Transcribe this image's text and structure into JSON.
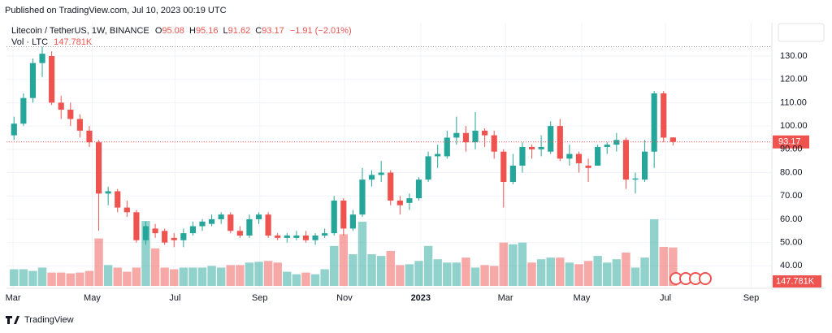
{
  "header": {
    "published": "Published on TradingView.com, Jul 10, 2023 00:19 UTC"
  },
  "footer": {
    "brand": "TradingView"
  },
  "chart_data": {
    "type": "candlestick",
    "symbol": "Litecoin / TetherUS, 1W, BINANCE",
    "ohlc_letters": [
      "O",
      "H",
      "L",
      "C"
    ],
    "change": "−1.91 (−2.01%)",
    "volume_title": "Vol · LTC",
    "up_color": "#26a69a",
    "down_color": "#ef5350",
    "open": [
      96,
      101,
      112,
      127,
      130,
      110,
      107,
      103,
      98,
      93,
      71,
      72,
      65,
      63,
      51,
      56,
      55,
      52,
      51,
      54,
      57,
      58,
      60,
      62,
      55,
      53,
      60,
      62,
      53,
      52,
      52,
      53,
      51,
      53,
      54,
      68,
      56,
      62,
      77,
      79,
      80,
      68,
      67,
      69,
      77,
      87,
      87,
      95,
      97,
      93,
      98,
      96,
      89,
      76,
      83,
      91,
      90,
      89,
      100,
      86,
      88,
      83,
      83,
      91,
      92,
      94,
      77,
      77,
      89,
      114,
      95.08
    ],
    "high": [
      104,
      114,
      129,
      134,
      132,
      113,
      110,
      105,
      100,
      94,
      74,
      73,
      68,
      64,
      59,
      58,
      56,
      54,
      56,
      59,
      60,
      62,
      63,
      63,
      57,
      62,
      63,
      63,
      54,
      54,
      55,
      55,
      54,
      56,
      70,
      69,
      64,
      82,
      81,
      85,
      81,
      70,
      71,
      78,
      89,
      92,
      98,
      104,
      100,
      106,
      99,
      98,
      90,
      88,
      93,
      92,
      96,
      102,
      103,
      92,
      89,
      86,
      92,
      93,
      97,
      95,
      80,
      94,
      115,
      115,
      95.16
    ],
    "low": [
      94,
      100,
      110,
      121,
      109,
      103,
      100,
      95,
      91,
      55,
      66,
      63,
      61,
      50,
      49,
      52,
      49,
      48,
      48,
      53,
      55,
      57,
      58,
      54,
      52,
      52,
      58,
      52,
      51,
      50,
      51,
      50,
      49,
      52,
      53,
      53,
      55,
      61,
      74,
      76,
      66,
      62,
      64,
      68,
      76,
      82,
      86,
      92,
      89,
      90,
      91,
      86,
      65,
      75,
      80,
      86,
      87,
      88,
      85,
      83,
      80,
      76,
      83,
      88,
      89,
      73,
      71,
      76,
      82,
      93,
      91.62
    ],
    "close": [
      101,
      112,
      127,
      131,
      110,
      107,
      103,
      98,
      93,
      71,
      72,
      65,
      63,
      51,
      57,
      54,
      50,
      51,
      54,
      57,
      59,
      60,
      62,
      55,
      53,
      60,
      62,
      53,
      52,
      53,
      53,
      51,
      53,
      54,
      68,
      56,
      62,
      77,
      79,
      80,
      68,
      66,
      69,
      77,
      87,
      88,
      95,
      97,
      93,
      98,
      96,
      89,
      76,
      83,
      91,
      90,
      91,
      100,
      86,
      88,
      84,
      82,
      91,
      92,
      94,
      77,
      77.5,
      89,
      114,
      95,
      93.17
    ],
    "volume": [
      64000,
      64000,
      57600,
      70400,
      51200,
      51200,
      48000,
      51200,
      57600,
      182400,
      80000,
      70400,
      54400,
      70400,
      249600,
      144000,
      70400,
      64000,
      70400,
      70400,
      70400,
      76800,
      70400,
      80000,
      80000,
      89600,
      92800,
      96000,
      89600,
      54400,
      44800,
      51200,
      44800,
      64000,
      153600,
      198400,
      121600,
      246400,
      121600,
      115200,
      134400,
      80000,
      83200,
      96000,
      153600,
      102400,
      89600,
      89600,
      108800,
      70400,
      80000,
      76800,
      166400,
      160000,
      166400,
      89600,
      102400,
      108800,
      108800,
      89600,
      83200,
      96000,
      115200,
      89600,
      102400,
      128000,
      70400,
      108800,
      256000,
      150000,
      147781
    ],
    "volume_labels": [
      null,
      null,
      null,
      null,
      null,
      null,
      null,
      null,
      null,
      null,
      null,
      null,
      null,
      null,
      null,
      null,
      null,
      null,
      null,
      null,
      null,
      null,
      null,
      null,
      null,
      null,
      null,
      null,
      null,
      null,
      null,
      null,
      null,
      null,
      null,
      null,
      null,
      null,
      null,
      null,
      null,
      null,
      null,
      null,
      null,
      null,
      null,
      null,
      null,
      null,
      null,
      null,
      null,
      null,
      null,
      null,
      null,
      null,
      null,
      null,
      null,
      null,
      null,
      null,
      null,
      null,
      null,
      null,
      null,
      null,
      "147.781K"
    ],
    "xlim": [
      -0.8,
      80.5
    ],
    "xticks": [
      {
        "value": -0.1,
        "label": "Mar"
      },
      {
        "value": 8.3,
        "label": "May"
      },
      {
        "value": 17.1,
        "label": "Jul"
      },
      {
        "value": 26.1,
        "label": "Sep"
      },
      {
        "value": 35.1,
        "label": "Nov"
      },
      {
        "value": 43.2,
        "label": "2023"
      },
      {
        "value": 52.2,
        "label": "Mar"
      },
      {
        "value": 60.3,
        "label": "May"
      },
      {
        "value": 69.2,
        "label": "Jul"
      },
      {
        "value": 78.3,
        "label": "Sep"
      }
    ],
    "ylim": [
      30.35,
      144.3
    ],
    "yticks": [
      {
        "value": 40,
        "label": "40.00"
      },
      {
        "value": 50,
        "label": "50.00"
      },
      {
        "value": 60,
        "label": "60.00"
      },
      {
        "value": 70,
        "label": "70.00"
      },
      {
        "value": 80,
        "label": "80.00"
      },
      {
        "value": 90,
        "label": "90.00"
      },
      {
        "value": 100,
        "label": "100.00"
      },
      {
        "value": 110,
        "label": "110.00"
      },
      {
        "value": 120,
        "label": "120.00"
      },
      {
        "value": 130,
        "label": "130.00"
      }
    ],
    "grid": true
  }
}
